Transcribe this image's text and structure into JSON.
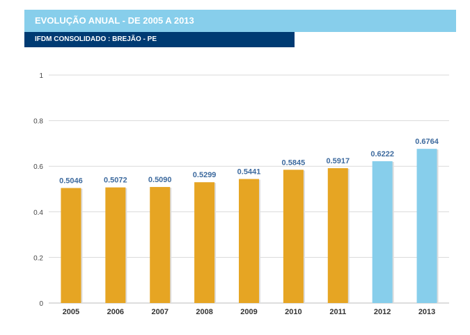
{
  "header": {
    "title": "EVOLUÇÃO ANUAL - DE 2005 A 2013",
    "subtitle": "IFDM CONSOLIDADO : BREJÃO - PE"
  },
  "colors": {
    "title_bar": "#87CEEB",
    "subtitle_bar": "#003b73",
    "bar_past": "#E6A523",
    "bar_recent": "#87CEEB",
    "value_label": "#3d6a9e"
  },
  "chart_data": {
    "type": "bar",
    "categories": [
      "2005",
      "2006",
      "2007",
      "2008",
      "2009",
      "2010",
      "2011",
      "2012",
      "2013"
    ],
    "values": [
      0.5046,
      0.5072,
      0.509,
      0.5299,
      0.5441,
      0.5845,
      0.5917,
      0.6222,
      0.6764
    ],
    "value_labels": [
      "0.5046",
      "0.5072",
      "0.5090",
      "0.5299",
      "0.5441",
      "0.5845",
      "0.5917",
      "0.6222",
      "0.6764"
    ],
    "bar_colors": [
      "#E6A523",
      "#E6A523",
      "#E6A523",
      "#E6A523",
      "#E6A523",
      "#E6A523",
      "#E6A523",
      "#87CEEB",
      "#87CEEB"
    ],
    "ylim": [
      0,
      1
    ],
    "yticks": [
      0,
      0.2,
      0.4,
      0.6,
      0.8,
      1
    ],
    "ytick_labels": [
      "0",
      "0.2",
      "0.4",
      "0.6",
      "0.8",
      "1"
    ],
    "grid": true,
    "legend": false
  }
}
